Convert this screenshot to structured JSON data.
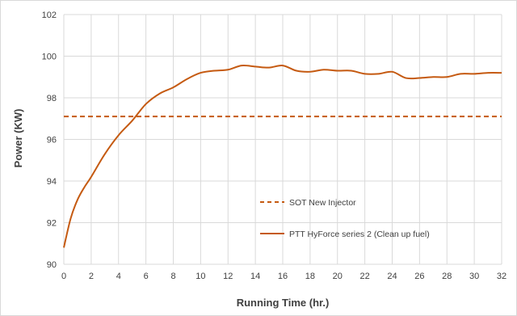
{
  "chart_data": {
    "type": "line",
    "xlabel": "Running Time (hr.)",
    "ylabel": "Power (KW)",
    "xlim": [
      0,
      32
    ],
    "ylim": [
      90,
      102
    ],
    "x_ticks": [
      0,
      2,
      4,
      6,
      8,
      10,
      12,
      14,
      16,
      18,
      20,
      22,
      24,
      26,
      28,
      30,
      32
    ],
    "y_ticks": [
      90,
      92,
      94,
      96,
      98,
      100,
      102
    ],
    "grid": {
      "x": true,
      "y": true
    },
    "legend_position": "inside-bottom-right",
    "colors": {
      "series": "#c55a11",
      "grid": "#d9d9d9",
      "text": "#404040"
    },
    "series": [
      {
        "name": "SOT New Injector",
        "style": "dashed",
        "x": [
          0,
          32
        ],
        "y": [
          97.1,
          97.1
        ]
      },
      {
        "name": "PTT HyForce series 2 (Clean up fuel)",
        "style": "solid",
        "x": [
          0,
          0.5,
          1,
          1.5,
          2,
          3,
          4,
          5,
          6,
          7,
          8,
          9,
          10,
          11,
          12,
          13,
          14,
          15,
          16,
          17,
          18,
          19,
          20,
          21,
          22,
          23,
          24,
          25,
          26,
          27,
          28,
          29,
          30,
          31,
          32
        ],
        "y": [
          90.8,
          92.2,
          93.1,
          93.7,
          94.2,
          95.3,
          96.2,
          96.9,
          97.7,
          98.2,
          98.5,
          98.9,
          99.2,
          99.3,
          99.35,
          99.55,
          99.5,
          99.45,
          99.55,
          99.3,
          99.25,
          99.35,
          99.3,
          99.3,
          99.15,
          99.15,
          99.25,
          98.95,
          98.95,
          99.0,
          99.0,
          99.15,
          99.15,
          99.2,
          99.2
        ]
      }
    ]
  }
}
